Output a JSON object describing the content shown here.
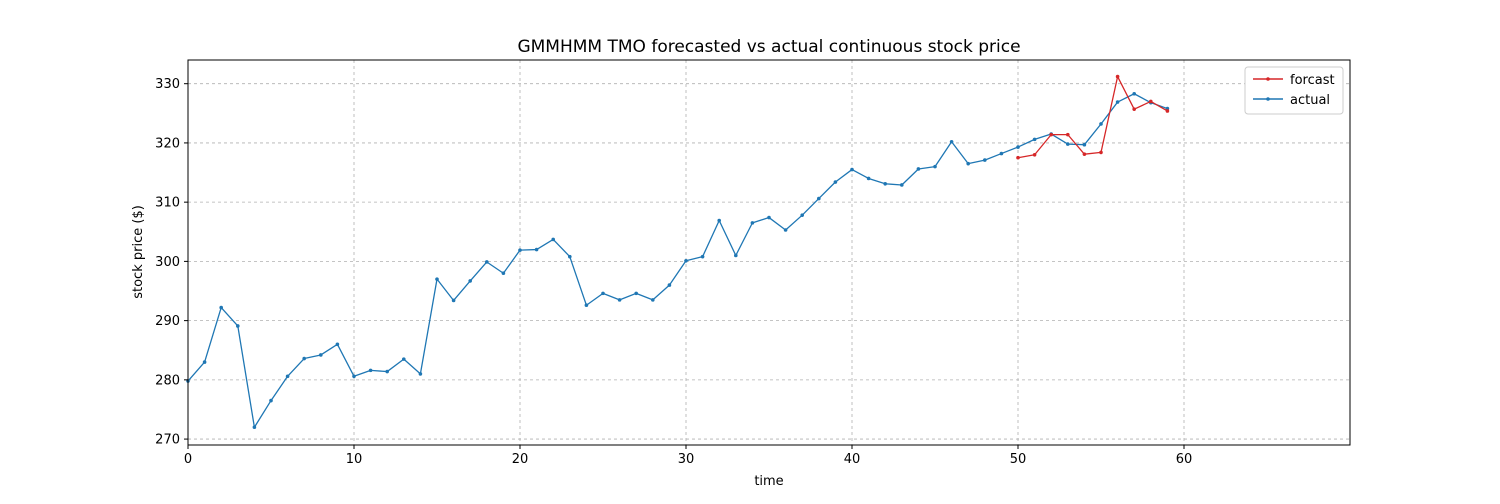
{
  "chart_data": {
    "type": "line",
    "title": "GMMHMM TMO forecasted vs actual continuous stock price",
    "xlabel": "time",
    "ylabel": "stock price ($)",
    "xlim": [
      0,
      70
    ],
    "ylim": [
      269,
      334
    ],
    "xticks": [
      0,
      10,
      20,
      30,
      40,
      50,
      60
    ],
    "yticks": [
      270,
      280,
      290,
      300,
      310,
      320,
      330
    ],
    "grid": true,
    "legend_position": "top-right",
    "series": [
      {
        "name": "forcast",
        "color": "#d62728",
        "x": [
          50,
          51,
          52,
          53,
          54,
          55,
          56,
          57,
          58,
          59
        ],
        "values": [
          317.5,
          318.0,
          321.4,
          321.4,
          318.1,
          318.4,
          331.2,
          325.7,
          327.0,
          325.4
        ]
      },
      {
        "name": "actual",
        "color": "#1f77b4",
        "x": [
          0,
          1,
          2,
          3,
          4,
          5,
          6,
          7,
          8,
          9,
          10,
          11,
          12,
          13,
          14,
          15,
          16,
          17,
          18,
          19,
          20,
          21,
          22,
          23,
          24,
          25,
          26,
          27,
          28,
          29,
          30,
          31,
          32,
          33,
          34,
          35,
          36,
          37,
          38,
          39,
          40,
          41,
          42,
          43,
          44,
          45,
          46,
          47,
          48,
          49,
          50,
          51,
          52,
          53,
          54,
          55,
          56,
          57,
          58,
          59
        ],
        "values": [
          279.8,
          283.0,
          292.2,
          289.1,
          272.0,
          276.5,
          280.6,
          283.6,
          284.2,
          286.0,
          280.6,
          281.6,
          281.4,
          283.5,
          281.0,
          297.0,
          293.4,
          296.7,
          299.9,
          298.0,
          301.9,
          302.0,
          303.7,
          300.8,
          292.6,
          294.6,
          293.5,
          294.6,
          293.5,
          296.0,
          300.1,
          300.8,
          306.9,
          301.0,
          306.5,
          307.4,
          305.3,
          307.8,
          310.6,
          313.4,
          315.5,
          314.0,
          313.1,
          312.9,
          315.6,
          316.0,
          320.2,
          316.5,
          317.1,
          318.2,
          319.3,
          320.6,
          321.5,
          319.8,
          319.7,
          323.2,
          326.9,
          328.3,
          326.8,
          325.8
        ]
      }
    ]
  }
}
